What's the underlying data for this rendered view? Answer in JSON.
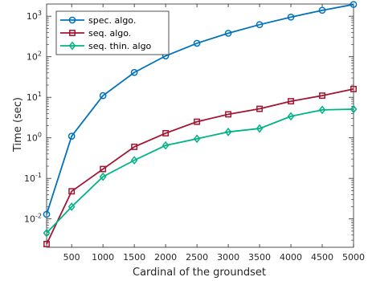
{
  "chart_data": {
    "type": "line",
    "xlabel": "Cardinal of the groundset",
    "ylabel": "Time (sec)",
    "yscale": "log",
    "xlim": [
      100,
      5000
    ],
    "ylim": [
      0.002,
      2000
    ],
    "x_ticks": [
      500,
      1000,
      1500,
      2000,
      2500,
      3000,
      3500,
      4000,
      4500,
      5000
    ],
    "y_ticks": [
      {
        "value": 0.01,
        "base": "10",
        "exp": "-2"
      },
      {
        "value": 0.1,
        "base": "10",
        "exp": "-1"
      },
      {
        "value": 1,
        "base": "10",
        "exp": "0"
      },
      {
        "value": 10,
        "base": "10",
        "exp": "1"
      },
      {
        "value": 100,
        "base": "10",
        "exp": "2"
      },
      {
        "value": 1000,
        "base": "10",
        "exp": "3"
      }
    ],
    "grid": false,
    "legend_position": "top-left",
    "x": [
      100,
      500,
      1000,
      1500,
      2000,
      2500,
      3000,
      3500,
      4000,
      4500,
      5000
    ],
    "series": [
      {
        "name": "spec. algo.",
        "color": "#0072BD",
        "marker": "circle",
        "values": [
          0.013,
          1.1,
          11,
          41,
          105,
          215,
          380,
          620,
          950,
          1400,
          1950
        ]
      },
      {
        "name": "seq. algo.",
        "color": "#A2142F",
        "marker": "square",
        "values": [
          0.0024,
          0.048,
          0.17,
          0.6,
          1.3,
          2.5,
          3.8,
          5.2,
          8,
          11,
          16
        ]
      },
      {
        "name": "seq. thin. algo",
        "color": "#00B386",
        "marker": "diamond",
        "values": [
          0.0045,
          0.02,
          0.11,
          0.28,
          0.65,
          0.95,
          1.4,
          1.7,
          3.4,
          4.9,
          5.1
        ]
      }
    ]
  }
}
